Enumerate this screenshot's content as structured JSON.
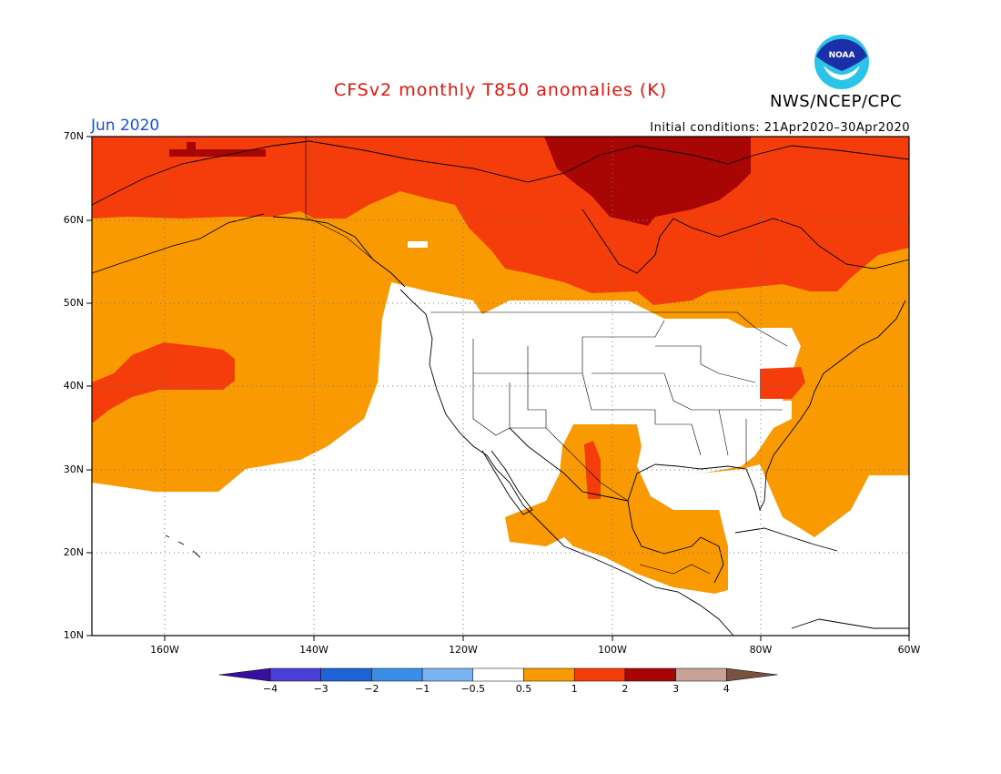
{
  "title": "CFSv2 monthly T850 anomalies (K)",
  "agency": "NWS/NCEP/CPC",
  "logo_text": "NOAA",
  "valid_month": "Jun 2020",
  "initial_conditions": "Initial conditions: 21Apr2020–30Apr2020",
  "lat_labels": [
    "70N",
    "60N",
    "50N",
    "40N",
    "30N",
    "20N",
    "10N"
  ],
  "lon_labels": [
    "160W",
    "140W",
    "120W",
    "100W",
    "80W",
    "60W"
  ],
  "colorbar": {
    "labels": [
      "−4",
      "−3",
      "−2",
      "−1",
      "−0.5",
      "0.5",
      "1",
      "2",
      "3",
      "4"
    ],
    "colors": [
      "#3a0f9e",
      "#4a3fd6",
      "#1f64d6",
      "#3b8ee8",
      "#7ab4f0",
      "#ffffff",
      "#f99a03",
      "#f53d0c",
      "#a80505",
      "#c8a395",
      "#7a5040"
    ]
  },
  "anomaly_colors": {
    "0.5-1": "#f99a03",
    "1-2": "#f53d0c",
    "2-3": "#a80505"
  }
}
